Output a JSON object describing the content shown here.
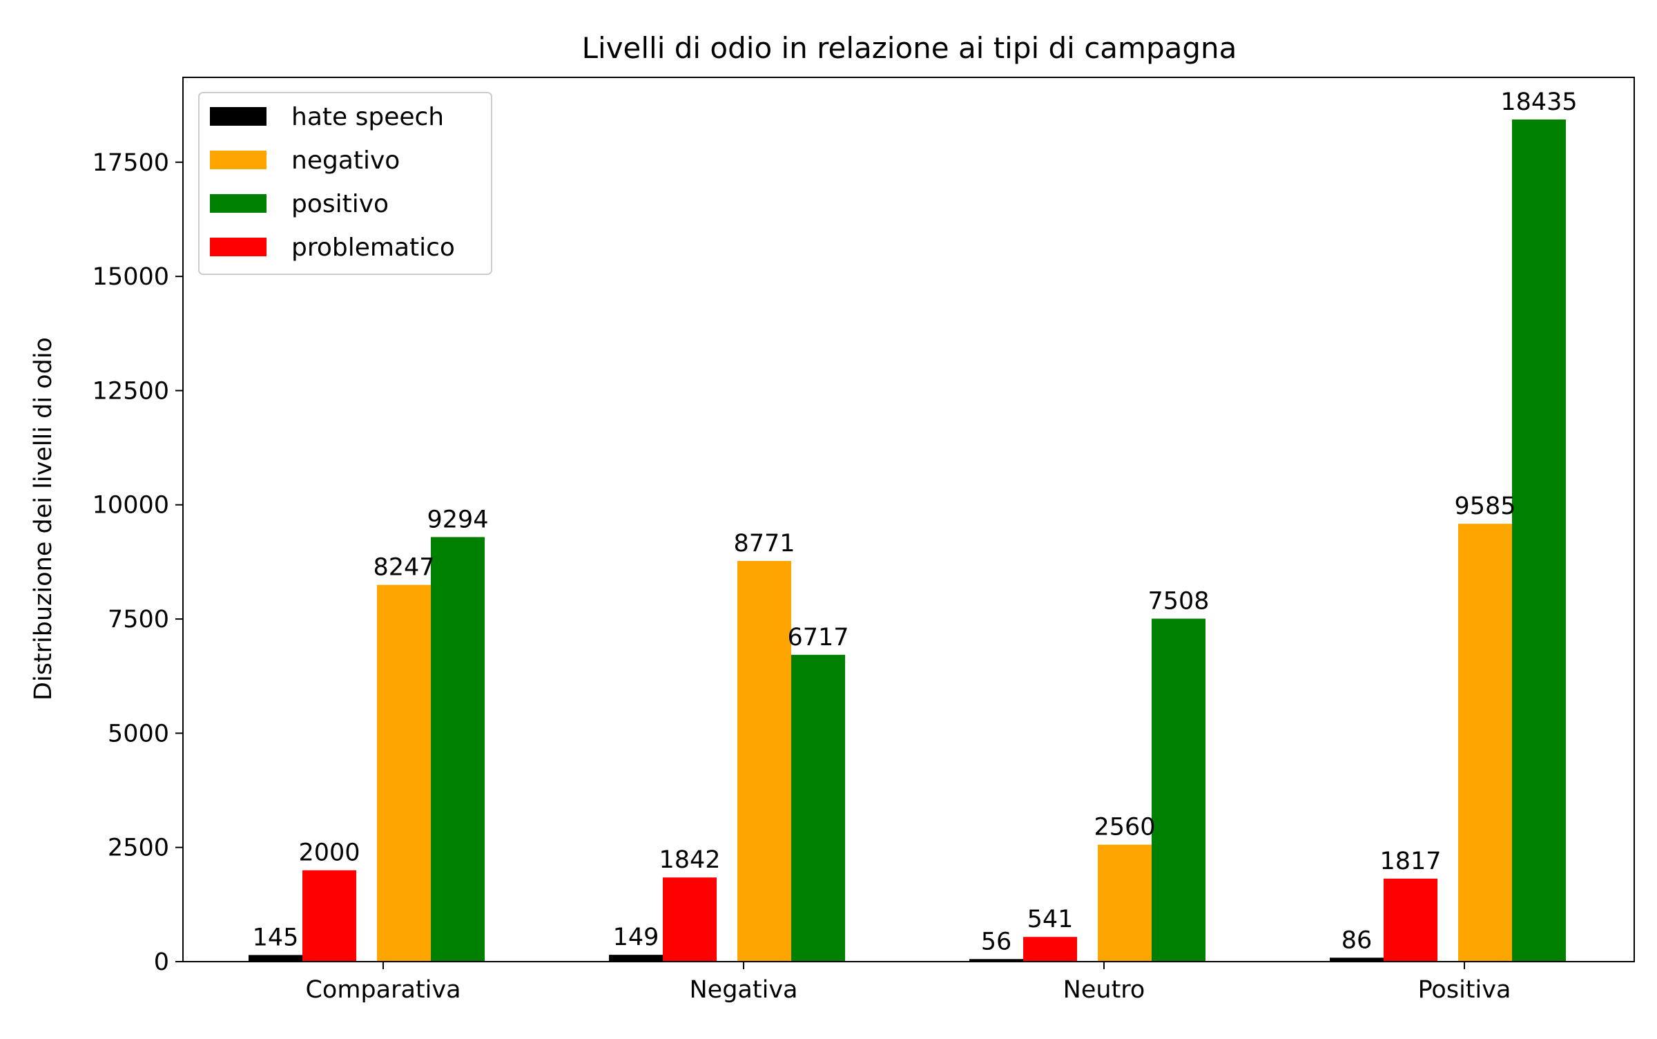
{
  "chart_data": {
    "type": "bar",
    "title": "Livelli di odio in relazione ai tipi di campagna",
    "xlabel": "",
    "ylabel": "Distribuzione dei livelli di odio",
    "categories": [
      "Comparativa",
      "Negativa",
      "Neutro",
      "Positiva"
    ],
    "series": [
      {
        "name": "hate speech",
        "color": "#000000",
        "values": [
          145,
          149,
          56,
          86
        ]
      },
      {
        "name": "problematico",
        "color": "#ff0000",
        "values": [
          2000,
          1842,
          541,
          1817
        ]
      },
      {
        "name": "negativo",
        "color": "#ffa500",
        "values": [
          8247,
          8771,
          2560,
          9585
        ]
      },
      {
        "name": "positivo",
        "color": "#008000",
        "values": [
          9294,
          6717,
          7508,
          18435
        ]
      }
    ],
    "legend_order": [
      "hate speech",
      "negativo",
      "positivo",
      "problematico"
    ],
    "legend_position": "top-left",
    "ylim": [
      0,
      19357
    ],
    "yticks": [
      0,
      2500,
      5000,
      7500,
      10000,
      12500,
      15000,
      17500
    ],
    "grid": false
  }
}
